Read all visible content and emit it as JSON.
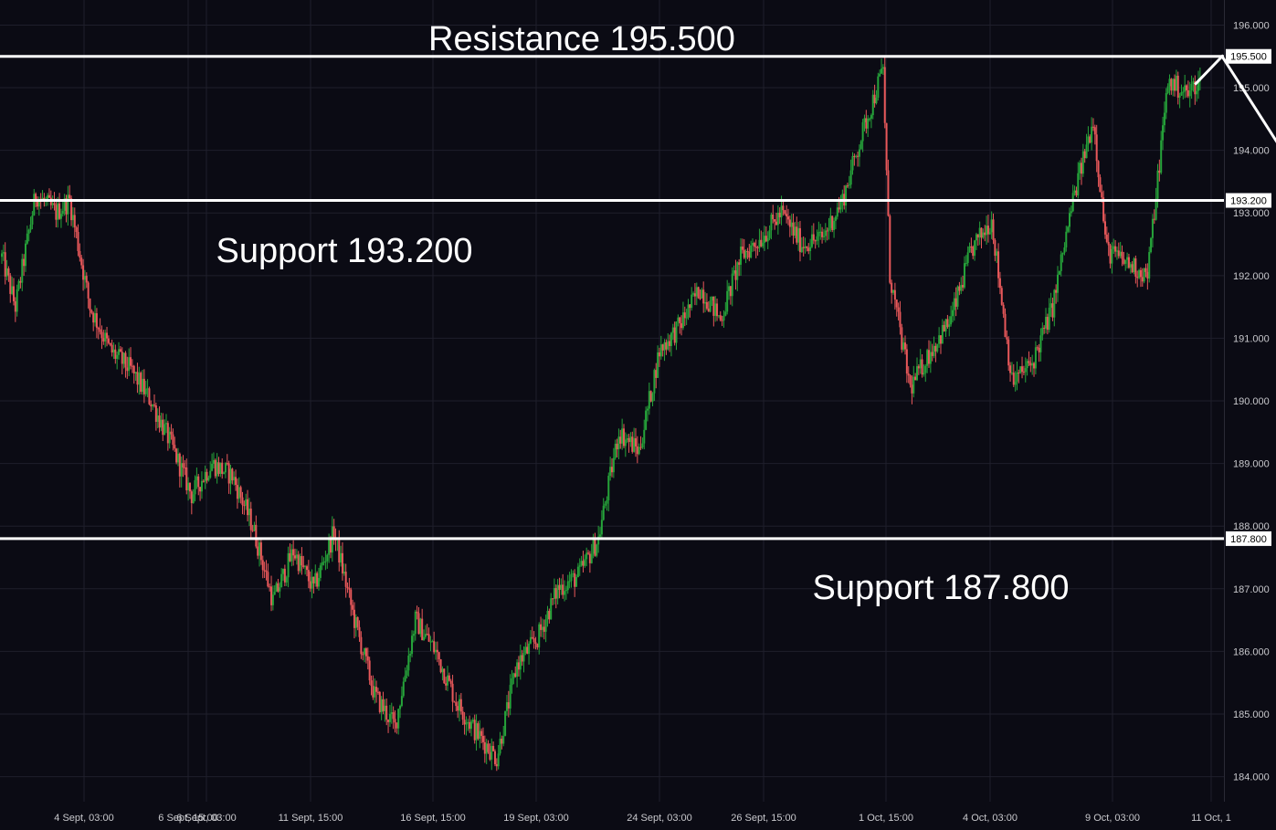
{
  "chart_data": {
    "type": "candlestick",
    "y_axis": {
      "min": 183.6,
      "max": 196.4,
      "ticks": [
        184.0,
        185.0,
        186.0,
        187.0,
        188.0,
        189.0,
        190.0,
        191.0,
        192.0,
        193.0,
        194.0,
        195.0,
        196.0
      ],
      "tick_labels": [
        "184.000",
        "185.000",
        "186.000",
        "187.000",
        "188.000",
        "189.000",
        "190.000",
        "191.000",
        "192.000",
        "193.000",
        "194.000",
        "195.000",
        "196.000"
      ],
      "position": "right"
    },
    "x_axis": {
      "tick_labels": [
        "4 Sept, 03:00",
        "6 Sept, 15:00",
        "6 Sept, 03:00",
        "11 Sept, 15:00",
        "16 Sept, 15:00",
        "19 Sept, 03:00",
        "24 Sept, 03:00",
        "26 Sept, 15:00",
        "1 Oct, 15:00",
        "4 Oct, 03:00",
        "9 Oct, 03:00",
        "11 Oct, 1"
      ]
    },
    "grid": true,
    "levels": [
      {
        "label": "Resistance 195.500",
        "value": 195.5,
        "tag": "195.500"
      },
      {
        "label": "Support 193.200",
        "value": 193.2,
        "tag": "193.200"
      },
      {
        "label": "Support 187.800",
        "value": 187.8,
        "tag": "187.800"
      }
    ],
    "path_anchors": [
      [
        0,
        192.3
      ],
      [
        2,
        191.5
      ],
      [
        5,
        193.3
      ],
      [
        8,
        193.0
      ],
      [
        10,
        193.2
      ],
      [
        13,
        191.5
      ],
      [
        16,
        190.8
      ],
      [
        19,
        190.5
      ],
      [
        22,
        190.0
      ],
      [
        25,
        189.3
      ],
      [
        28,
        188.5
      ],
      [
        31,
        189.0
      ],
      [
        34,
        188.8
      ],
      [
        37,
        188.0
      ],
      [
        40,
        186.8
      ],
      [
        43,
        187.6
      ],
      [
        46,
        187.0
      ],
      [
        49,
        187.9
      ],
      [
        52,
        186.5
      ],
      [
        55,
        185.3
      ],
      [
        58,
        184.8
      ],
      [
        61,
        186.5
      ],
      [
        64,
        186.0
      ],
      [
        67,
        185.2
      ],
      [
        70,
        184.7
      ],
      [
        73,
        184.3
      ],
      [
        76,
        185.8
      ],
      [
        79,
        186.2
      ],
      [
        82,
        187.0
      ],
      [
        85,
        187.2
      ],
      [
        88,
        187.8
      ],
      [
        91,
        189.5
      ],
      [
        94,
        189.2
      ],
      [
        97,
        190.8
      ],
      [
        100,
        191.2
      ],
      [
        103,
        191.8
      ],
      [
        106,
        191.3
      ],
      [
        109,
        192.3
      ],
      [
        112,
        192.6
      ],
      [
        115,
        193.0
      ],
      [
        118,
        192.5
      ],
      [
        121,
        192.6
      ],
      [
        124,
        193.2
      ],
      [
        127,
        194.3
      ],
      [
        130,
        195.3
      ],
      [
        131,
        192.0
      ],
      [
        134,
        190.2
      ],
      [
        137,
        190.8
      ],
      [
        140,
        191.3
      ],
      [
        143,
        192.4
      ],
      [
        146,
        192.9
      ],
      [
        149,
        190.3
      ],
      [
        152,
        190.6
      ],
      [
        155,
        191.5
      ],
      [
        158,
        193.2
      ],
      [
        161,
        194.5
      ],
      [
        163,
        192.4
      ],
      [
        166,
        192.2
      ],
      [
        169,
        192.0
      ],
      [
        172,
        195.1
      ],
      [
        175,
        194.9
      ],
      [
        176,
        195.05
      ]
    ],
    "up_color": "#26a43a",
    "down_color": "#e8585a"
  },
  "annotations": {
    "arrow": {
      "from": [
        176,
        195.05
      ],
      "peak": [
        180,
        195.5
      ],
      "to": [
        193,
        193.3
      ]
    }
  }
}
